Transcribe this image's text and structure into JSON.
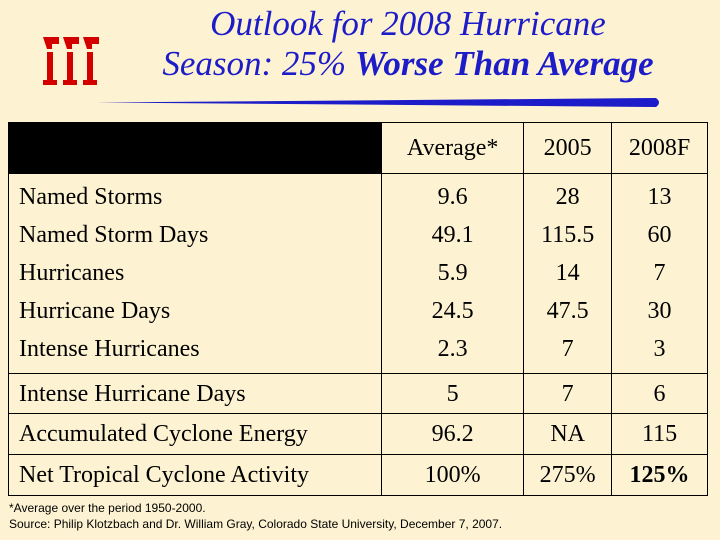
{
  "title": {
    "line1": "Outlook for 2008 Hurricane",
    "line2_prefix": "Season: 25%",
    "line2_bold": "Worse Than Average"
  },
  "table": {
    "headers": [
      "Average*",
      "2005",
      "2008F"
    ],
    "groups": [
      {
        "labels": [
          "Named Storms",
          "Named Storm Days",
          "Hurricanes",
          "Hurricane Days",
          "Intense Hurricanes"
        ],
        "average": [
          "9.6",
          "49.1",
          "5.9",
          "24.5",
          "2.3"
        ],
        "y2005": [
          "28",
          "115.5",
          "14",
          "47.5",
          "7"
        ],
        "y2008f": [
          "13",
          "60",
          "7",
          "30",
          "3"
        ]
      },
      {
        "labels": [
          "Intense Hurricane Days"
        ],
        "average": [
          "5"
        ],
        "y2005": [
          "7"
        ],
        "y2008f": [
          "6"
        ]
      },
      {
        "labels": [
          "Accumulated Cyclone Energy"
        ],
        "average": [
          "96.2"
        ],
        "y2005": [
          "NA"
        ],
        "y2008f": [
          "115"
        ]
      },
      {
        "labels": [
          "Net Tropical Cyclone Activity"
        ],
        "average": [
          "100%"
        ],
        "y2005": [
          "275%"
        ],
        "y2008f": [
          "125%"
        ]
      }
    ]
  },
  "footnote": {
    "line1": "*Average over the period 1950-2000.",
    "line2": "Source: Philip Klotzbach and Dr. William Gray, Colorado State University, December 7, 2007."
  },
  "colors": {
    "background": "#fdf3d2",
    "title": "#1c1cc8",
    "logo": "#d40000",
    "underline": "#1c1cc8"
  }
}
